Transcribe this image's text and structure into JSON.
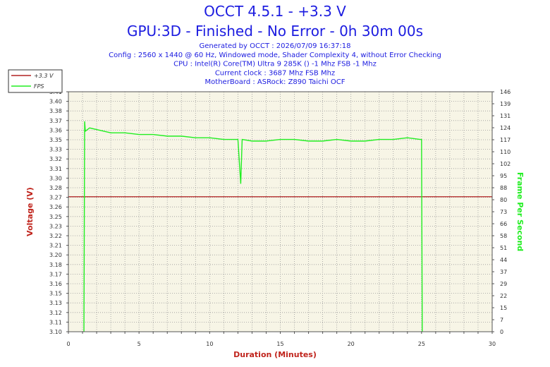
{
  "header": {
    "title": "OCCT 4.5.1 - +3.3 V",
    "subtitle": "GPU:3D - Finished - No Error - 0h 30m 00s",
    "info_lines": [
      "Generated by OCCT : 2026/07/09 16:37:18",
      "Config : 2560 x 1440 @ 60 Hz, Windowed mode, Shader Complexity 4, without Error Checking",
      "CPU : Intel(R) Core(TM) Ultra 9 285K () -1 Mhz FSB -1 Mhz",
      "Current clock : 3687 Mhz FSB  Mhz",
      "MotherBoard : ASRock: Z890 Taichi OCF"
    ]
  },
  "colors": {
    "voltage": "#b22222",
    "fps": "#22ee22",
    "plot_bg": "#f7f5e6",
    "grid": "#9a9a9a",
    "text_blue": "#1c1ce0",
    "axis_title_red": "#c0241c"
  },
  "chart_data": {
    "type": "line",
    "xlabel": "Duration (Minutes)",
    "ylabel": "Voltage (V)",
    "y2label": "Frame Per Second",
    "xlim": [
      0,
      30
    ],
    "ylim": [
      3.1,
      3.42
    ],
    "y2lim": [
      0,
      146
    ],
    "grid": true,
    "legend_position": "top-left",
    "x_ticks": [
      "0",
      "5",
      "10",
      "15",
      "20",
      "25",
      "30"
    ],
    "y_ticks": [
      "3.10",
      "3.11",
      "3.12",
      "3.13",
      "3.15",
      "3.16",
      "3.17",
      "3.18",
      "3.20",
      "3.21",
      "3.22",
      "3.23",
      "3.25",
      "3.26",
      "3.27",
      "3.28",
      "3.30",
      "3.31",
      "3.32",
      "3.33",
      "3.35",
      "3.36",
      "3.37",
      "3.38",
      "3.40",
      "3.41"
    ],
    "y2_ticks": [
      "0",
      "7",
      "15",
      "22",
      "29",
      "37",
      "44",
      "51",
      "58",
      "66",
      "73",
      "80",
      "88",
      "95",
      "102",
      "110",
      "117",
      "124",
      "131",
      "139",
      "146"
    ],
    "series": [
      {
        "name": "+3.3 V",
        "axis": "left",
        "x": [
          0,
          30
        ],
        "values": [
          3.28,
          3.28
        ]
      },
      {
        "name": "FPS",
        "axis": "right",
        "x": [
          1.1,
          1.15,
          1.2,
          1.5,
          2,
          3,
          4,
          5,
          6,
          7,
          8,
          9,
          10,
          11,
          12,
          12.2,
          12.3,
          13,
          14,
          15,
          16,
          17,
          18,
          19,
          20,
          21,
          22,
          23,
          24,
          24.9,
          25.0,
          25.05
        ],
        "values": [
          0,
          128,
          122,
          124,
          123,
          121,
          121,
          120,
          120,
          119,
          119,
          118,
          118,
          117,
          117,
          90,
          117,
          116,
          116,
          117,
          117,
          116,
          116,
          117,
          116,
          116,
          117,
          117,
          118,
          117,
          117,
          0
        ]
      }
    ]
  }
}
